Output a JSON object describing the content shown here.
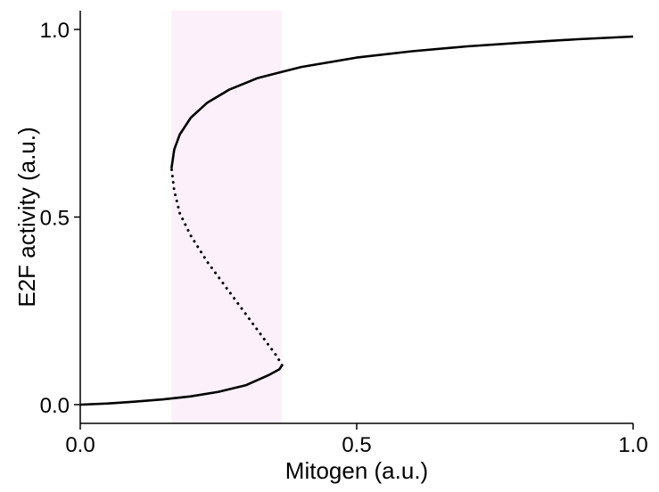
{
  "chart_data": {
    "type": "line",
    "title": "",
    "xlabel": "Mitogen (a.u.)",
    "ylabel": "E2F activity (a.u.)",
    "xlim": [
      0.0,
      1.0
    ],
    "ylim": [
      -0.05,
      1.05
    ],
    "xticks": [
      0.0,
      0.5,
      1.0
    ],
    "xtick_labels": [
      "0.0",
      "0.5",
      "1.0"
    ],
    "yticks": [
      0.0,
      0.5,
      1.0
    ],
    "ytick_labels": [
      "0.0",
      "0.5",
      "1.0"
    ],
    "grid": false,
    "bistable_region": {
      "x_start": 0.165,
      "x_end": 0.365,
      "color": "#fcf0fa"
    },
    "series": [
      {
        "style": "solid",
        "color": "#000000",
        "x": [
          0.0,
          0.05,
          0.1,
          0.15,
          0.2,
          0.25,
          0.3,
          0.34,
          0.36,
          0.365
        ],
        "y": [
          0.0,
          0.003,
          0.008,
          0.014,
          0.022,
          0.034,
          0.052,
          0.078,
          0.094,
          0.105
        ]
      },
      {
        "style": "dotted",
        "color": "#000000",
        "x": [
          0.365,
          0.355,
          0.34,
          0.32,
          0.295,
          0.265,
          0.23,
          0.2,
          0.18,
          0.17,
          0.165
        ],
        "y": [
          0.105,
          0.13,
          0.16,
          0.2,
          0.25,
          0.31,
          0.38,
          0.45,
          0.51,
          0.57,
          0.63
        ]
      },
      {
        "style": "solid",
        "color": "#000000",
        "x": [
          0.165,
          0.17,
          0.18,
          0.2,
          0.23,
          0.27,
          0.32,
          0.36,
          0.4,
          0.5,
          0.6,
          0.7,
          0.8,
          0.9,
          1.0
        ],
        "y": [
          0.63,
          0.68,
          0.72,
          0.765,
          0.805,
          0.84,
          0.87,
          0.885,
          0.9,
          0.925,
          0.942,
          0.955,
          0.965,
          0.974,
          0.981
        ]
      }
    ]
  }
}
